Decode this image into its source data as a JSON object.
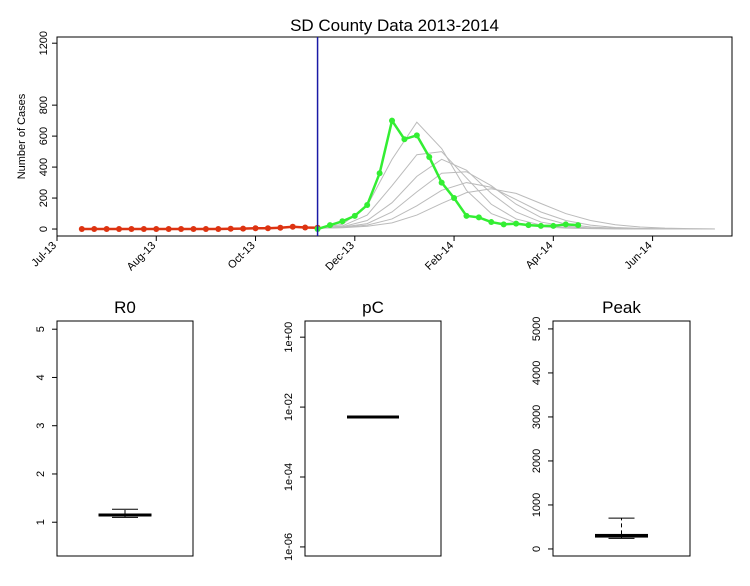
{
  "chart_data": [
    {
      "type": "line",
      "title": "SD County Data 2013-2014",
      "y_label": "Number of Cases",
      "xlim": [
        0,
        54.4
      ],
      "ylim": [
        -45,
        1240
      ],
      "xticks": [
        {
          "value": 0,
          "label": "Jul-13"
        },
        {
          "value": 8,
          "label": "Aug-13"
        },
        {
          "value": 16,
          "label": "Oct-13"
        },
        {
          "value": 24,
          "label": "Dec-13"
        },
        {
          "value": 32,
          "label": "Feb-14"
        },
        {
          "value": 40,
          "label": "Apr-14"
        },
        {
          "value": 48,
          "label": "Jun-14"
        }
      ],
      "yticks": [
        0,
        200,
        400,
        600,
        800,
        1200
      ],
      "vline": {
        "x": 21,
        "color": "#1a1aa6"
      },
      "series": [
        {
          "color": "#bbbbbb",
          "markers": false,
          "x": [
            21,
            23,
            25,
            27,
            29,
            31,
            33,
            35,
            37,
            39,
            41,
            43,
            45,
            47,
            49,
            51,
            53
          ],
          "values": [
            5,
            30,
            150,
            450,
            690,
            520,
            250,
            100,
            40,
            15,
            6,
            3,
            1,
            0,
            0,
            0,
            0
          ]
        },
        {
          "color": "#bbbbbb",
          "markers": false,
          "x": [
            21,
            23,
            25,
            27,
            29,
            31,
            33,
            35,
            37,
            39,
            41,
            43,
            45,
            47,
            49,
            51,
            53
          ],
          "values": [
            5,
            20,
            90,
            280,
            480,
            500,
            330,
            160,
            65,
            25,
            10,
            4,
            2,
            1,
            0,
            0,
            0
          ]
        },
        {
          "color": "#bbbbbb",
          "markers": false,
          "x": [
            21,
            23,
            25,
            27,
            29,
            31,
            33,
            35,
            37,
            39,
            41,
            43,
            45,
            47,
            49,
            51,
            53
          ],
          "values": [
            5,
            15,
            55,
            170,
            340,
            450,
            380,
            230,
            110,
            45,
            18,
            7,
            3,
            1,
            0,
            0,
            0
          ]
        },
        {
          "color": "#bbbbbb",
          "markers": false,
          "x": [
            21,
            23,
            25,
            27,
            29,
            31,
            33,
            35,
            37,
            39,
            41,
            43,
            45,
            47,
            49,
            51,
            53
          ],
          "values": [
            5,
            12,
            35,
            110,
            240,
            360,
            370,
            280,
            160,
            75,
            32,
            13,
            5,
            2,
            1,
            0,
            0
          ]
        },
        {
          "color": "#bbbbbb",
          "markers": false,
          "x": [
            21,
            23,
            25,
            27,
            29,
            31,
            33,
            35,
            37,
            39,
            41,
            43,
            45,
            47,
            49,
            51,
            53
          ],
          "values": [
            5,
            10,
            25,
            65,
            150,
            250,
            300,
            270,
            190,
            110,
            55,
            25,
            10,
            4,
            2,
            1,
            0
          ]
        },
        {
          "color": "#bbbbbb",
          "markers": false,
          "x": [
            21,
            23,
            25,
            27,
            29,
            31,
            33,
            35,
            37,
            39,
            41,
            43,
            45,
            47,
            49,
            51,
            53
          ],
          "values": [
            5,
            8,
            18,
            40,
            90,
            165,
            235,
            260,
            230,
            165,
            100,
            55,
            28,
            13,
            6,
            3,
            1
          ]
        },
        {
          "color": "#dd3311",
          "markers": true,
          "x": [
            2,
            3,
            4,
            5,
            6,
            7,
            8,
            9,
            10,
            11,
            12,
            13,
            14,
            15,
            16,
            17,
            18,
            19,
            20,
            21
          ],
          "values": [
            0,
            0,
            0,
            0,
            0,
            0,
            0,
            0,
            0,
            0,
            0,
            0,
            2,
            3,
            5,
            5,
            8,
            15,
            10,
            8
          ]
        },
        {
          "color": "#33ee33",
          "markers": true,
          "x": [
            21,
            22,
            23,
            24,
            25,
            26,
            27,
            28,
            29,
            30,
            31,
            32,
            33,
            34,
            35,
            36,
            37,
            38,
            39,
            40,
            41,
            42
          ],
          "values": [
            0,
            25,
            50,
            85,
            155,
            360,
            700,
            580,
            605,
            465,
            300,
            200,
            85,
            75,
            45,
            30,
            35,
            25,
            20,
            20,
            30,
            25
          ]
        }
      ]
    },
    {
      "type": "box",
      "title": "R0",
      "ylim": [
        0.3,
        5.17
      ],
      "yticks": [
        1,
        2,
        3,
        4,
        5
      ],
      "whisker_low": 1.1,
      "q1": 1.13,
      "median": 1.15,
      "q3": 1.17,
      "whisker_high": 1.27
    },
    {
      "type": "box",
      "title": "pC",
      "log": true,
      "ylim": [
        5.5e-07,
        2.9
      ],
      "yticks": [
        {
          "value": 1,
          "label": "1e+00"
        },
        {
          "value": 0.01,
          "label": "1e-02"
        },
        {
          "value": 0.0001,
          "label": "1e-04"
        },
        {
          "value": 1e-06,
          "label": "1e-06"
        }
      ],
      "whisker_low": 0.0052,
      "q1": 0.0052,
      "median": 0.0052,
      "q3": 0.0052,
      "whisker_high": 0.0052
    },
    {
      "type": "box",
      "title": "Peak",
      "ylim": [
        -160,
        5180
      ],
      "yticks": [
        0,
        1000,
        2000,
        3000,
        4000,
        5000
      ],
      "whisker_low": 240,
      "q1": 270,
      "median": 300,
      "q3": 330,
      "whisker_high": 700
    }
  ]
}
